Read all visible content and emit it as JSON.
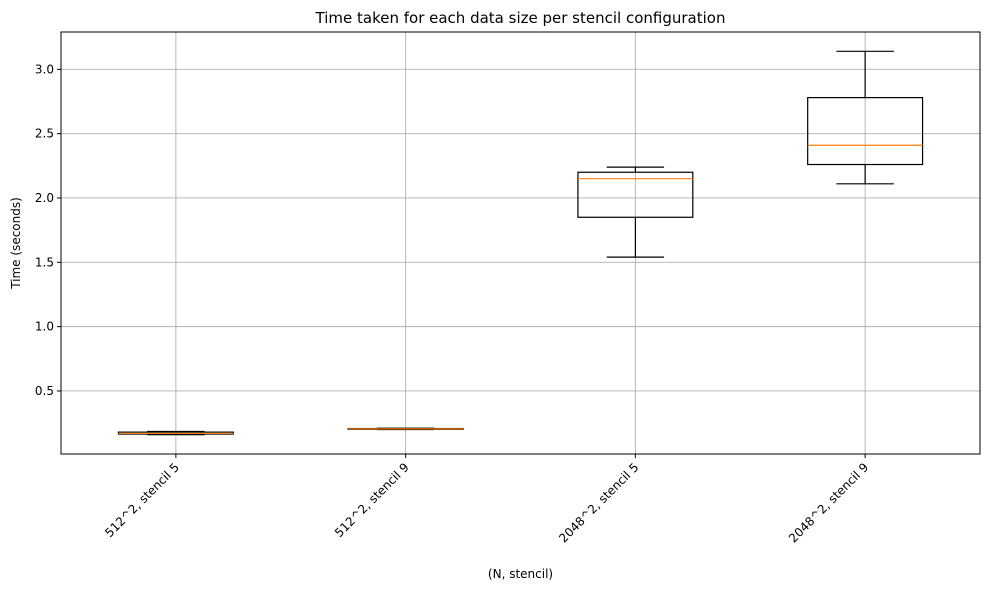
{
  "chart_data": {
    "type": "box",
    "title": "Time taken for each data size per stencil configuration",
    "xlabel": "(N, stencil)",
    "ylabel": "Time (seconds)",
    "categories": [
      "512^2, stencil 5",
      "512^2, stencil 9",
      "2048^2, stencil 5",
      "2048^2, stencil 9"
    ],
    "boxes": [
      {
        "category": "512^2, stencil 5",
        "whisker_low": 0.16,
        "q1": 0.165,
        "median": 0.17,
        "q3": 0.18,
        "whisker_high": 0.185
      },
      {
        "category": "512^2, stencil 9",
        "whisker_low": 0.2,
        "q1": 0.202,
        "median": 0.205,
        "q3": 0.208,
        "whisker_high": 0.21
      },
      {
        "category": "2048^2, stencil 5",
        "whisker_low": 1.54,
        "q1": 1.85,
        "median": 2.15,
        "q3": 2.2,
        "whisker_high": 2.24
      },
      {
        "category": "2048^2, stencil 9",
        "whisker_low": 2.11,
        "q1": 2.26,
        "median": 2.41,
        "q3": 2.78,
        "whisker_high": 3.14
      }
    ],
    "yticks": [
      "0.5",
      "1.0",
      "1.5",
      "2.0",
      "2.5",
      "3.0"
    ],
    "ylim": [
      0.01,
      3.29
    ],
    "grid": true,
    "x_tick_rotation_deg": 45,
    "colors": {
      "box": "#000000",
      "median": "#ff7f0e",
      "grid": "#b0b0b0"
    }
  }
}
